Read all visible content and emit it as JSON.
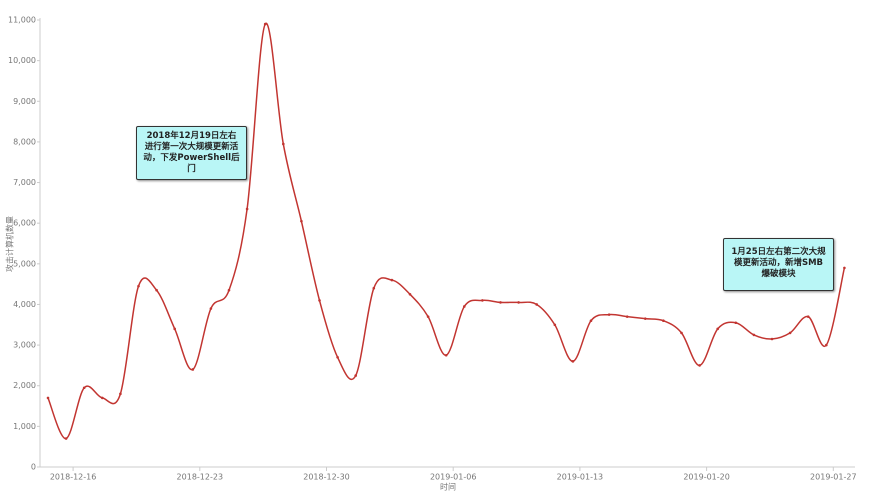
{
  "chart_data": {
    "type": "line",
    "x_label": "时间",
    "y_label": "攻击计算机数量",
    "categories": [
      null,
      "2018-12-16",
      null,
      null,
      null,
      null,
      null,
      null,
      "2018-12-23",
      null,
      null,
      null,
      null,
      null,
      null,
      "2018-12-30",
      null,
      null,
      null,
      null,
      null,
      null,
      "2019-01-06",
      null,
      null,
      null,
      null,
      null,
      null,
      "2019-01-13",
      null,
      null,
      null,
      null,
      null,
      null,
      "2019-01-20",
      null,
      null,
      null,
      null,
      null,
      null,
      "2019-01-27",
      null
    ],
    "series": [
      {
        "color": "#c23531",
        "values": [
          1700,
          700,
          1950,
          1700,
          1800,
          4450,
          4350,
          3400,
          2400,
          3900,
          4350,
          6350,
          10900,
          7950,
          6050,
          4100,
          2700,
          2250,
          4400,
          4600,
          4250,
          3700,
          2750,
          3950,
          4100,
          4050,
          4050,
          4000,
          3500,
          2600,
          3600,
          3750,
          3700,
          3650,
          3600,
          3300,
          2500,
          3400,
          3550,
          3250,
          3150,
          3300,
          3700,
          3000,
          4900
        ]
      }
    ],
    "ylim": [
      0,
      11000
    ],
    "yticks": [
      0,
      {
        "value": 1000,
        "label": "1,000"
      },
      {
        "value": 2000,
        "label": "2,000"
      },
      {
        "value": 3000,
        "label": "3,000"
      },
      {
        "value": 4000,
        "label": "4,000"
      },
      {
        "value": 5000,
        "label": "5,000"
      },
      {
        "value": 6000,
        "label": "6,000"
      },
      {
        "value": 7000,
        "label": "7,000"
      },
      {
        "value": 8000,
        "label": "8,000"
      },
      {
        "value": 9000,
        "label": "9,000"
      },
      {
        "value": 10000,
        "label": "10,000"
      },
      {
        "value": 11000,
        "label": "11,000"
      }
    ],
    "annotations": [
      "2018年12月19日左右进行第一次大规模更新活动，下发PowerShell后门",
      "1月25日左右第二次大规模更新活动，新增SMB爆破模块"
    ]
  }
}
